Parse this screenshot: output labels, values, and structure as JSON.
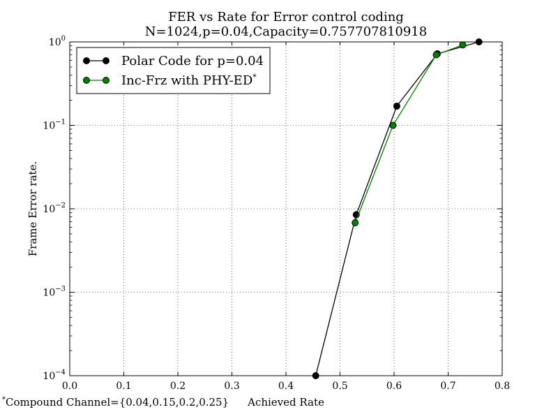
{
  "chart_data": {
    "type": "line",
    "title": "FER vs Rate for Error control coding",
    "subtitle": "N=1024,p=0.04,Capacity=0.757707810918",
    "xlabel": "Achieved Rate",
    "ylabel": "Frame Error rate.",
    "xlim": [
      0.0,
      0.8
    ],
    "ylim": [
      0.0001,
      1
    ],
    "yscale": "log",
    "grid": true,
    "legend_position": "top-left",
    "x_ticks": [
      "0.0",
      "0.1",
      "0.2",
      "0.3",
      "0.4",
      "0.5",
      "0.6",
      "0.7",
      "0.8"
    ],
    "y_ticks": [
      {
        "base": "10",
        "exp": "0"
      },
      {
        "base": "10",
        "exp": "−1"
      },
      {
        "base": "10",
        "exp": "−2"
      },
      {
        "base": "10",
        "exp": "−3"
      },
      {
        "base": "10",
        "exp": "−4"
      }
    ],
    "series": [
      {
        "name": "Polar Code for p=0.04",
        "color": "#000000",
        "x": [
          0.455,
          0.53,
          0.605,
          0.68,
          0.757
        ],
        "y": [
          0.0001,
          0.0085,
          0.17,
          0.72,
          1.0
        ]
      },
      {
        "name": "Inc-Frz with PHY-ED",
        "name_superscript": "*",
        "color": "#008000",
        "x": [
          0.528,
          0.598,
          0.678,
          0.727
        ],
        "y": [
          0.0068,
          0.1,
          0.7,
          0.92
        ]
      }
    ],
    "footnote": {
      "mark": "*",
      "text": "Compound Channel={0.04,0.15,0.2,0.25}"
    }
  }
}
